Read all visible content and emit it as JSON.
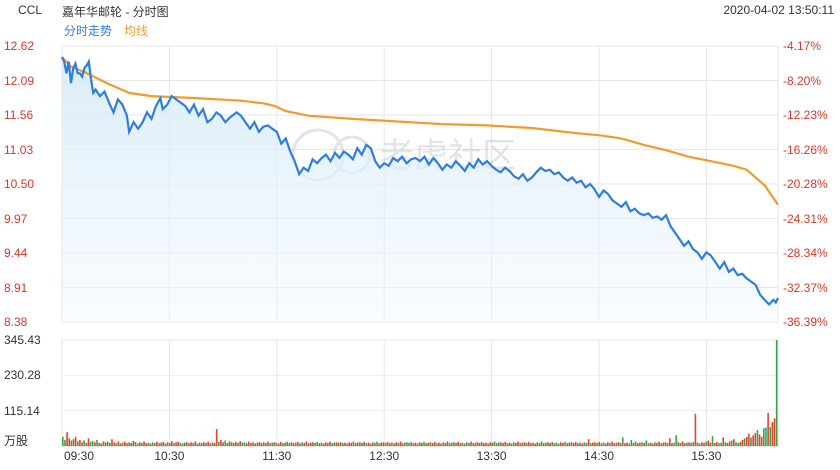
{
  "header": {
    "ticker": "CCL",
    "title": "嘉年华邮轮 - 分时图",
    "datetime": "2020-04-02 13:50:11"
  },
  "watermark": "老虎社区",
  "chart_data": {
    "type": "line",
    "legend": [
      {
        "name": "分时走势",
        "color": "#2e7de0"
      },
      {
        "name": "均线",
        "color": "#f29a2e"
      }
    ],
    "price_axis": {
      "ticks": [
        "12.62",
        "12.09",
        "11.56",
        "11.03",
        "10.50",
        "9.97",
        "9.44",
        "8.91",
        "8.38"
      ],
      "ylim": [
        8.38,
        12.62
      ]
    },
    "pct_axis": {
      "ticks": [
        "-4.17%",
        "-8.20%",
        "-12.23%",
        "-16.26%",
        "-20.28%",
        "-24.31%",
        "-28.34%",
        "-32.37%",
        "-36.39%"
      ]
    },
    "volume_axis": {
      "ticks": [
        "345.43",
        "230.28",
        "115.14"
      ],
      "unit": "万股",
      "ylim": [
        0,
        345.43
      ]
    },
    "x_ticks": [
      "09:30",
      "10:30",
      "11:30",
      "12:30",
      "13:30",
      "14:30",
      "15:30"
    ],
    "series": [
      {
        "name": "分时走势",
        "color": "#2e7de0",
        "points": [
          [
            0,
            12.45
          ],
          [
            1,
            12.38
          ],
          [
            2,
            12.2
          ],
          [
            3,
            12.38
          ],
          [
            4,
            12.05
          ],
          [
            5,
            12.28
          ],
          [
            6,
            12.35
          ],
          [
            7,
            12.2
          ],
          [
            8,
            12.2
          ],
          [
            9,
            12.15
          ],
          [
            10,
            12.28
          ],
          [
            11,
            12.32
          ],
          [
            12,
            12.38
          ],
          [
            13,
            12.1
          ],
          [
            14,
            11.9
          ],
          [
            15,
            11.95
          ],
          [
            17,
            11.85
          ],
          [
            19,
            11.92
          ],
          [
            21,
            11.75
          ],
          [
            23,
            11.6
          ],
          [
            25,
            11.8
          ],
          [
            27,
            11.72
          ],
          [
            29,
            11.55
          ],
          [
            30,
            11.3
          ],
          [
            32,
            11.45
          ],
          [
            34,
            11.35
          ],
          [
            36,
            11.45
          ],
          [
            38,
            11.6
          ],
          [
            40,
            11.5
          ],
          [
            42,
            11.7
          ],
          [
            44,
            11.82
          ],
          [
            45,
            11.65
          ],
          [
            47,
            11.72
          ],
          [
            49,
            11.85
          ],
          [
            51,
            11.8
          ],
          [
            53,
            11.75
          ],
          [
            55,
            11.7
          ],
          [
            57,
            11.6
          ],
          [
            59,
            11.72
          ],
          [
            61,
            11.55
          ],
          [
            63,
            11.65
          ],
          [
            65,
            11.45
          ],
          [
            67,
            11.5
          ],
          [
            69,
            11.6
          ],
          [
            71,
            11.55
          ],
          [
            73,
            11.45
          ],
          [
            75,
            11.52
          ],
          [
            78,
            11.6
          ],
          [
            80,
            11.55
          ],
          [
            82,
            11.45
          ],
          [
            84,
            11.35
          ],
          [
            86,
            11.45
          ],
          [
            88,
            11.3
          ],
          [
            90,
            11.38
          ],
          [
            92,
            11.4
          ],
          [
            94,
            11.35
          ],
          [
            96,
            11.3
          ],
          [
            98,
            11.12
          ],
          [
            100,
            11.2
          ],
          [
            102,
            11.0
          ],
          [
            104,
            10.85
          ],
          [
            106,
            10.65
          ],
          [
            108,
            10.75
          ],
          [
            110,
            10.7
          ],
          [
            112,
            10.88
          ],
          [
            114,
            10.82
          ],
          [
            116,
            10.9
          ],
          [
            118,
            10.95
          ],
          [
            120,
            10.85
          ],
          [
            122,
            10.98
          ],
          [
            124,
            10.9
          ],
          [
            126,
            11.0
          ],
          [
            128,
            10.95
          ],
          [
            130,
            10.88
          ],
          [
            132,
            11.05
          ],
          [
            134,
            10.95
          ],
          [
            136,
            11.1
          ],
          [
            138,
            11.05
          ],
          [
            140,
            10.85
          ],
          [
            142,
            10.75
          ],
          [
            144,
            10.82
          ],
          [
            146,
            10.78
          ],
          [
            148,
            10.9
          ],
          [
            150,
            10.85
          ],
          [
            152,
            10.92
          ],
          [
            154,
            10.82
          ],
          [
            156,
            10.88
          ],
          [
            158,
            10.9
          ],
          [
            160,
            10.85
          ],
          [
            162,
            10.92
          ],
          [
            164,
            10.8
          ],
          [
            166,
            10.9
          ],
          [
            168,
            10.82
          ],
          [
            170,
            10.72
          ],
          [
            172,
            10.8
          ],
          [
            174,
            10.75
          ],
          [
            176,
            10.85
          ],
          [
            178,
            10.78
          ],
          [
            180,
            10.7
          ],
          [
            182,
            10.82
          ],
          [
            184,
            10.75
          ],
          [
            186,
            10.88
          ],
          [
            188,
            10.8
          ],
          [
            190,
            10.85
          ],
          [
            192,
            10.78
          ],
          [
            194,
            10.72
          ],
          [
            196,
            10.68
          ],
          [
            198,
            10.75
          ],
          [
            200,
            10.7
          ],
          [
            202,
            10.62
          ],
          [
            204,
            10.58
          ],
          [
            206,
            10.65
          ],
          [
            208,
            10.55
          ],
          [
            210,
            10.6
          ],
          [
            212,
            10.68
          ],
          [
            214,
            10.75
          ],
          [
            216,
            10.7
          ],
          [
            218,
            10.72
          ],
          [
            220,
            10.65
          ],
          [
            222,
            10.68
          ],
          [
            224,
            10.6
          ],
          [
            226,
            10.55
          ],
          [
            228,
            10.6
          ],
          [
            230,
            10.52
          ],
          [
            232,
            10.55
          ],
          [
            234,
            10.45
          ],
          [
            236,
            10.5
          ],
          [
            238,
            10.42
          ],
          [
            240,
            10.3
          ],
          [
            242,
            10.4
          ],
          [
            244,
            10.35
          ],
          [
            246,
            10.25
          ],
          [
            248,
            10.2
          ],
          [
            250,
            10.15
          ],
          [
            252,
            10.22
          ],
          [
            254,
            10.08
          ],
          [
            256,
            10.12
          ],
          [
            258,
            10.05
          ],
          [
            260,
            10.02
          ],
          [
            262,
            10.05
          ],
          [
            264,
            9.98
          ],
          [
            266,
            10.0
          ],
          [
            268,
            9.95
          ],
          [
            270,
            10.02
          ],
          [
            272,
            9.85
          ],
          [
            274,
            9.75
          ],
          [
            276,
            9.65
          ],
          [
            278,
            9.55
          ],
          [
            280,
            9.62
          ],
          [
            282,
            9.5
          ],
          [
            284,
            9.45
          ],
          [
            286,
            9.35
          ],
          [
            288,
            9.45
          ],
          [
            290,
            9.4
          ],
          [
            292,
            9.3
          ],
          [
            294,
            9.2
          ],
          [
            296,
            9.3
          ],
          [
            298,
            9.15
          ],
          [
            300,
            9.2
          ],
          [
            302,
            9.1
          ],
          [
            304,
            9.12
          ],
          [
            306,
            9.05
          ],
          [
            308,
            9.0
          ],
          [
            310,
            8.95
          ],
          [
            312,
            8.8
          ],
          [
            314,
            8.72
          ],
          [
            316,
            8.65
          ],
          [
            318,
            8.72
          ],
          [
            319,
            8.68
          ],
          [
            320,
            8.75
          ]
        ]
      },
      {
        "name": "均线",
        "color": "#f29a2e",
        "points": [
          [
            0,
            12.45
          ],
          [
            4,
            12.3
          ],
          [
            10,
            12.22
          ],
          [
            20,
            12.05
          ],
          [
            30,
            11.9
          ],
          [
            40,
            11.85
          ],
          [
            60,
            11.82
          ],
          [
            80,
            11.78
          ],
          [
            90,
            11.74
          ],
          [
            95,
            11.7
          ],
          [
            100,
            11.62
          ],
          [
            110,
            11.55
          ],
          [
            130,
            11.5
          ],
          [
            150,
            11.46
          ],
          [
            170,
            11.42
          ],
          [
            190,
            11.4
          ],
          [
            210,
            11.36
          ],
          [
            220,
            11.32
          ],
          [
            230,
            11.28
          ],
          [
            240,
            11.25
          ],
          [
            250,
            11.2
          ],
          [
            260,
            11.1
          ],
          [
            270,
            11.02
          ],
          [
            280,
            10.92
          ],
          [
            290,
            10.85
          ],
          [
            300,
            10.78
          ],
          [
            306,
            10.72
          ],
          [
            310,
            10.6
          ],
          [
            314,
            10.48
          ],
          [
            318,
            10.28
          ],
          [
            320,
            10.18
          ]
        ]
      }
    ],
    "volume": [
      30,
      20,
      45,
      25,
      18,
      22,
      30,
      15,
      20,
      12,
      18,
      10,
      25,
      14,
      16,
      12,
      20,
      10,
      8,
      15,
      12,
      14,
      10,
      22,
      12,
      9,
      15,
      8,
      11,
      14,
      9,
      12,
      10,
      16,
      13,
      8,
      12,
      10,
      15,
      9,
      11,
      8,
      12,
      10,
      14,
      9,
      11,
      13,
      8,
      12,
      10,
      16,
      9,
      12,
      14,
      10,
      8,
      11,
      13,
      9,
      12,
      10,
      15,
      8,
      11,
      9,
      12,
      10,
      14,
      8,
      12,
      10,
      55,
      14,
      20,
      12,
      18,
      10,
      15,
      12,
      9,
      13,
      10,
      16,
      11,
      12,
      9,
      14,
      10,
      12,
      8,
      11,
      13,
      9,
      12,
      10,
      14,
      9,
      11,
      12,
      10,
      8,
      13,
      9,
      11,
      14,
      10,
      12,
      9,
      11,
      13,
      8,
      12,
      10,
      15,
      9,
      11,
      12,
      10,
      13,
      9,
      11,
      8,
      12,
      10,
      14,
      9,
      11,
      12,
      10,
      13,
      9,
      11,
      8,
      12,
      10,
      15,
      9,
      11,
      12,
      10,
      13,
      9,
      11,
      8,
      12,
      10,
      14,
      9,
      11,
      12,
      10,
      13,
      9,
      11,
      8,
      12,
      10,
      15,
      9,
      11,
      12,
      10,
      13,
      9,
      11,
      8,
      12,
      10,
      14,
      9,
      11,
      12,
      10,
      13,
      9,
      11,
      8,
      12,
      10,
      15,
      9,
      11,
      12,
      10,
      13,
      9,
      11,
      8,
      12,
      10,
      14,
      9,
      11,
      12,
      10,
      13,
      9,
      11,
      8,
      12,
      10,
      15,
      9,
      11,
      12,
      10,
      13,
      9,
      11,
      8,
      12,
      10,
      14,
      9,
      11,
      12,
      10,
      13,
      9,
      11,
      8,
      12,
      10,
      15,
      9,
      11,
      12,
      10,
      13,
      9,
      11,
      8,
      12,
      10,
      14,
      9,
      11,
      12,
      10,
      13,
      9,
      11,
      8,
      12,
      10,
      22,
      9,
      11,
      12,
      10,
      13,
      9,
      11,
      8,
      12,
      10,
      14,
      9,
      11,
      12,
      10,
      28,
      9,
      11,
      8,
      20,
      10,
      15,
      9,
      11,
      12,
      10,
      18,
      9,
      11,
      8,
      12,
      10,
      14,
      9,
      11,
      12,
      10,
      25,
      9,
      11,
      35,
      12,
      10,
      15,
      9,
      11,
      12,
      10,
      13,
      105,
      11,
      8,
      12,
      10,
      14,
      18,
      11,
      32,
      10,
      13,
      9,
      11,
      28,
      12,
      10,
      15,
      18,
      22,
      12,
      10,
      13,
      20,
      25,
      30,
      40,
      28,
      35,
      42,
      52,
      38,
      30,
      58,
      60,
      108,
      62,
      78,
      90,
      345
    ]
  }
}
